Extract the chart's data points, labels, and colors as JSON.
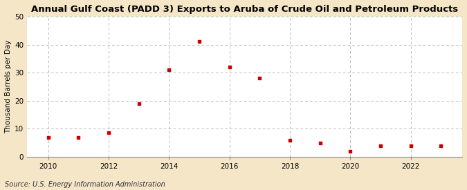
{
  "title": "Annual Gulf Coast (PADD 3) Exports to Aruba of Crude Oil and Petroleum Products",
  "ylabel": "Thousand Barrels per Day",
  "source": "Source: U.S. Energy Information Administration",
  "fig_background_color": "#f5e6c8",
  "plot_background_color": "#ffffff",
  "marker_color": "#cc0000",
  "grid_color": "#bbbbbb",
  "years": [
    2010,
    2011,
    2012,
    2013,
    2014,
    2015,
    2016,
    2017,
    2018,
    2019,
    2020,
    2021,
    2022,
    2023
  ],
  "values": [
    7.0,
    7.0,
    8.5,
    19.0,
    31.0,
    41.0,
    32.0,
    28.0,
    6.0,
    5.0,
    2.0,
    4.0,
    4.0,
    4.0
  ],
  "ylim": [
    0,
    50
  ],
  "yticks": [
    0,
    10,
    20,
    30,
    40,
    50
  ],
  "xlim": [
    2009.3,
    2023.7
  ],
  "xticks": [
    2010,
    2012,
    2014,
    2016,
    2018,
    2020,
    2022
  ],
  "title_fontsize": 9.5,
  "label_fontsize": 7.5,
  "tick_fontsize": 7.5,
  "source_fontsize": 7.0
}
